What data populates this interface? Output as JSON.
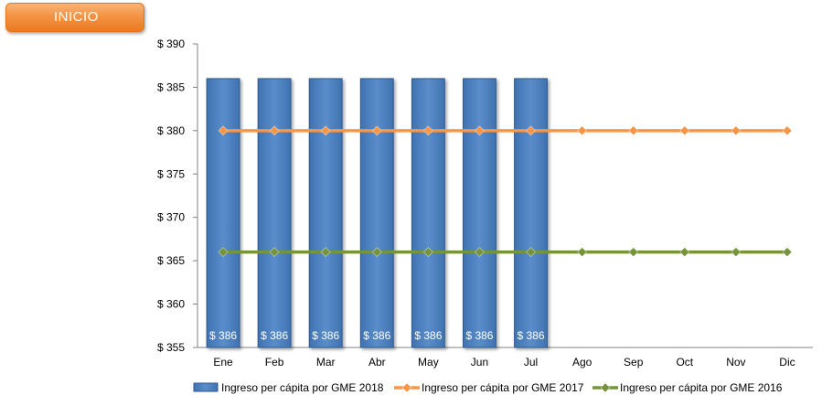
{
  "header": {
    "inicio_label": "INICIO"
  },
  "chart_data": {
    "type": "bar",
    "categories": [
      "Ene",
      "Feb",
      "Mar",
      "Abr",
      "May",
      "Jun",
      "Jul",
      "Ago",
      "Sep",
      "Oct",
      "Nov",
      "Dic"
    ],
    "ylim": [
      355,
      390
    ],
    "yticks": [
      355,
      360,
      365,
      370,
      375,
      380,
      385,
      390
    ],
    "ytick_labels": [
      "$ 355",
      "$ 360",
      "$ 365",
      "$ 370",
      "$ 375",
      "$ 380",
      "$ 385",
      "$ 390"
    ],
    "title": "",
    "xlabel": "",
    "ylabel": "",
    "grid": false,
    "legend_position": "bottom",
    "series": [
      {
        "name": "Ingreso per cápita por GME 2018",
        "kind": "bar",
        "color": "#4f81bd",
        "values": [
          386,
          386,
          386,
          386,
          386,
          386,
          386,
          null,
          null,
          null,
          null,
          null
        ],
        "data_labels": [
          "$ 386",
          "$ 386",
          "$ 386",
          "$ 386",
          "$ 386",
          "$ 386",
          "$ 386",
          "",
          "",
          "",
          "",
          ""
        ]
      },
      {
        "name": "Ingreso per cápita por GME 2017",
        "kind": "line",
        "color": "#f79646",
        "values": [
          380,
          380,
          380,
          380,
          380,
          380,
          380,
          380,
          380,
          380,
          380,
          380
        ]
      },
      {
        "name": "Ingreso per cápita por GME 2016",
        "kind": "line",
        "color": "#77933c",
        "values": [
          366,
          366,
          366,
          366,
          366,
          366,
          366,
          366,
          366,
          366,
          366,
          366
        ]
      }
    ]
  }
}
